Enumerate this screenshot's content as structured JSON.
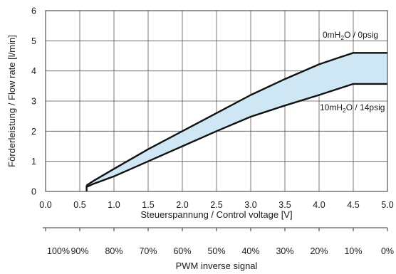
{
  "chart_data": {
    "type": "area",
    "xlabel": "Steuerspannung / Control voltage [V]",
    "ylabel": "Förderleistung / Flow rate [l/min]",
    "xlim": [
      0,
      5
    ],
    "ylim": [
      0,
      6
    ],
    "x_ticks": [
      "0.0",
      "0.5",
      "1.0",
      "1.5",
      "2.0",
      "2.5",
      "3.0",
      "3.5",
      "4.0",
      "4.5",
      "5.0"
    ],
    "y_ticks": [
      "0",
      "1",
      "2",
      "3",
      "4",
      "5",
      "6"
    ],
    "grid": true,
    "fill_color": "#cfe7f4",
    "line_color": "#111111",
    "series": [
      {
        "label_parts": [
          "0mH",
          "2",
          "O / 0psig"
        ],
        "x": [
          0.6,
          0.7,
          1.0,
          1.5,
          2.0,
          2.5,
          3.0,
          3.5,
          4.0,
          4.3,
          4.5,
          5.0
        ],
        "y": [
          0.2,
          0.35,
          0.75,
          1.4,
          2.0,
          2.6,
          3.2,
          3.73,
          4.22,
          4.45,
          4.6,
          4.6
        ]
      },
      {
        "label_parts": [
          "10mH",
          "2",
          "O / 14psig"
        ],
        "x": [
          0.6,
          0.7,
          1.0,
          1.5,
          2.0,
          2.5,
          3.0,
          3.5,
          4.0,
          4.5,
          5.0
        ],
        "y": [
          0.15,
          0.25,
          0.5,
          1.0,
          1.5,
          2.0,
          2.48,
          2.85,
          3.2,
          3.57,
          3.57
        ]
      }
    ],
    "lower_boundary": {
      "x": 0.6,
      "y_from": 0.0,
      "y_to": 0.2
    },
    "secondary_axis": {
      "label": "PWM inverse signal",
      "ticks": [
        "100%",
        "90%",
        "80%",
        "70%",
        "60%",
        "50%",
        "40%",
        "30%",
        "20%",
        "10%",
        "0%"
      ]
    }
  }
}
